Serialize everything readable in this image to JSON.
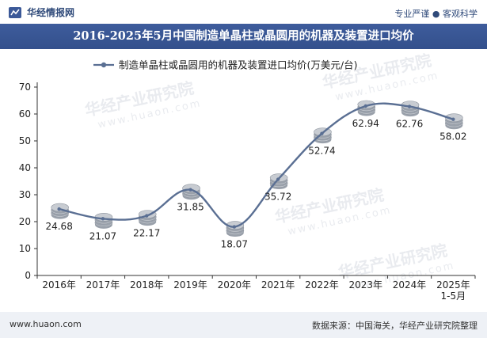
{
  "header": {
    "logo_text": "华经情报网",
    "slogan": "专业严谨 ● 客观科学",
    "title": "2016-2025年5月中国制造单晶柱或晶圆用的机器及装置进口均价"
  },
  "footer": {
    "website": "www.huaon.com",
    "source": "数据来源：中国海关，华经产业研究院整理"
  },
  "watermark": {
    "cn": "华经产业研究院",
    "url": "www.huaon.com"
  },
  "colors": {
    "title_bar": "#3b5998",
    "line": "#5a6f93",
    "coin": "#c8ccd2"
  },
  "chart_data": {
    "type": "line",
    "title": "2016-2025年5月中国制造单晶柱或晶圆用的机器及装置进口均价",
    "categories": [
      "2016年",
      "2017年",
      "2018年",
      "2019年",
      "2020年",
      "2021年",
      "2022年",
      "2023年",
      "2024年",
      "2025年\n1-5月"
    ],
    "series": [
      {
        "name": "制造单晶柱或晶圆用的机器及装置进口均价(万美元/台)",
        "values": [
          24.68,
          21.07,
          22.17,
          31.85,
          18.07,
          35.72,
          52.74,
          62.94,
          62.76,
          58.02
        ]
      }
    ],
    "data_labels": [
      "24.68",
      "21.07",
      "22.17",
      "31.85",
      "18.07",
      "35.72",
      "52.74",
      "62.94",
      "62.76",
      "58.02"
    ],
    "yticks": [
      "0",
      "10",
      "20",
      "30",
      "40",
      "50",
      "60",
      "70"
    ],
    "ylim": [
      0,
      70
    ],
    "grid": false,
    "legend_position": "top-center"
  }
}
